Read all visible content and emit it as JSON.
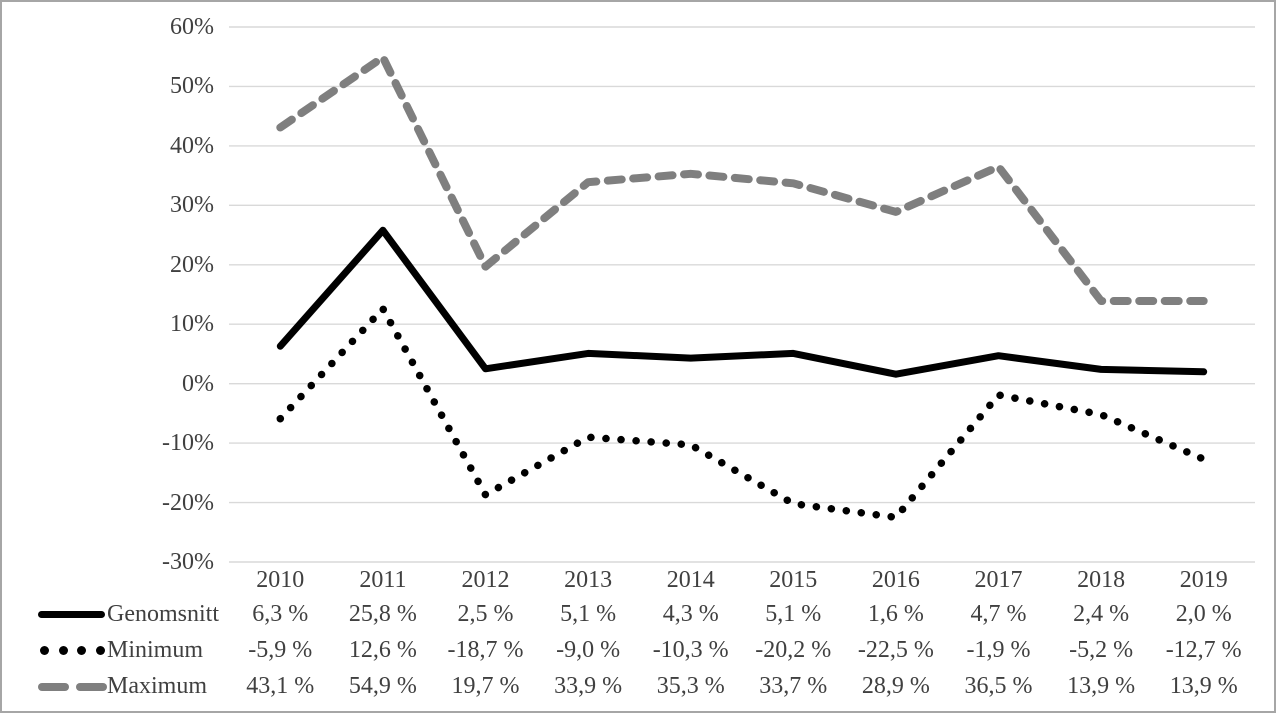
{
  "figure": {
    "background": "#ffffff",
    "border_color": "#a6a6a6",
    "text_color": "#404040"
  },
  "chart_data": {
    "type": "line",
    "title": "",
    "xlabel": "",
    "ylabel": "",
    "categories": [
      "2010",
      "2011",
      "2012",
      "2013",
      "2014",
      "2015",
      "2016",
      "2017",
      "2018",
      "2019"
    ],
    "series": [
      {
        "name": "Genomsnitt",
        "style": "solid",
        "color": "#000000",
        "values": [
          6.3,
          25.8,
          2.5,
          5.1,
          4.3,
          5.1,
          1.6,
          4.7,
          2.4,
          2.0
        ]
      },
      {
        "name": "Minimum",
        "style": "dotted",
        "color": "#000000",
        "values": [
          -5.9,
          12.6,
          -18.7,
          -9.0,
          -10.3,
          -20.2,
          -22.5,
          -1.9,
          -5.2,
          -12.7
        ]
      },
      {
        "name": "Maximum",
        "style": "dashed",
        "color": "#7f7f7f",
        "values": [
          43.1,
          54.9,
          19.7,
          33.9,
          35.3,
          33.7,
          28.9,
          36.5,
          13.9,
          13.9
        ]
      }
    ],
    "ylim": [
      -30,
      60
    ],
    "y_ticks": [
      "60%",
      "50%",
      "40%",
      "30%",
      "20%",
      "10%",
      "0%",
      "-10%",
      "-20%",
      "-30%"
    ],
    "grid": true,
    "gridline_color": "#d9d9d9",
    "legend_position": "bottom-left"
  },
  "table": {
    "header_years": [
      "2010",
      "2011",
      "2012",
      "2013",
      "2014",
      "2015",
      "2016",
      "2017",
      "2018",
      "2019"
    ],
    "rows": [
      {
        "label": "Genomsnitt",
        "marker": "solid-black-line",
        "values": [
          "6,3 %",
          "25,8 %",
          "2,5 %",
          "5,1 %",
          "4,3 %",
          "5,1 %",
          "1,6 %",
          "4,7 %",
          "2,4 %",
          "2,0 %"
        ]
      },
      {
        "label": "Minimum",
        "marker": "dotted-black-line",
        "values": [
          "-5,9 %",
          "12,6 %",
          "-18,7 %",
          "-9,0 %",
          "-10,3 %",
          "-20,2 %",
          "-22,5 %",
          "-1,9 %",
          "-5,2 %",
          "-12,7 %"
        ]
      },
      {
        "label": "Maximum",
        "marker": "dashed-gray-line",
        "values": [
          "43,1 %",
          "54,9 %",
          "19,7 %",
          "33,9 %",
          "35,3 %",
          "33,7 %",
          "28,9 %",
          "36,5 %",
          "13,9 %",
          "13,9 %"
        ]
      }
    ]
  }
}
